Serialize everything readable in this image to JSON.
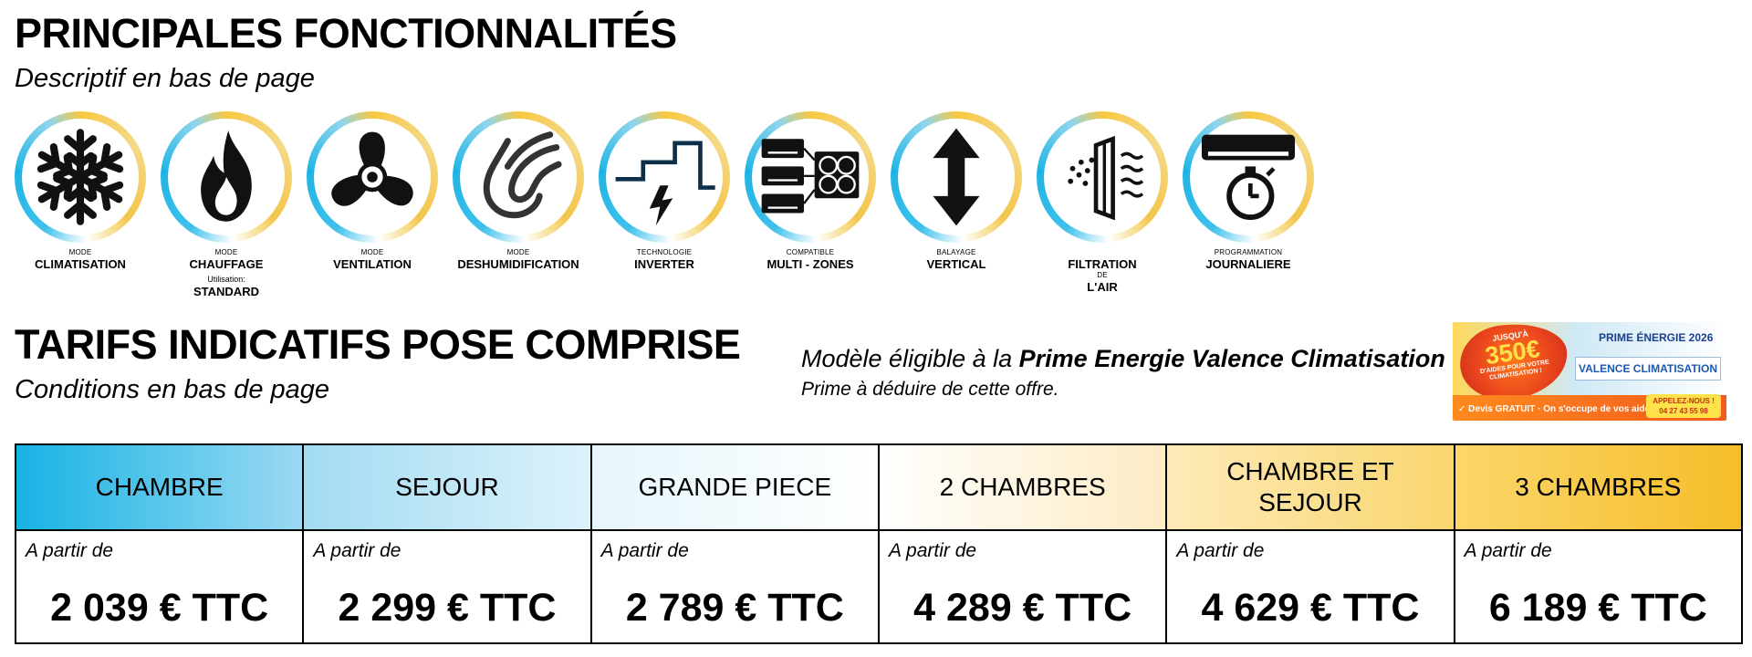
{
  "features": {
    "title": "PRINCIPALES FONCTIONNALITÉS",
    "subtitle": "Descriptif en bas de page",
    "items": [
      {
        "small": "MODE",
        "big": "CLIMATISATION",
        "icon": "snowflake-icon"
      },
      {
        "small": "MODE",
        "big": "CHAUFFAGE",
        "extra_small": "Utilisation:",
        "extra_big": "STANDARD",
        "icon": "flame-icon"
      },
      {
        "small": "MODE",
        "big": "VENTILATION",
        "icon": "fan-icon"
      },
      {
        "small": "MODE",
        "big": "DESHUMIDIFICATION",
        "icon": "droplet-wind-icon"
      },
      {
        "small": "TECHNOLOGIE",
        "big": "INVERTER",
        "icon": "inverter-lightning-icon"
      },
      {
        "small": "COMPATIBLE",
        "big": "MULTI - ZONES",
        "icon": "multi-zone-units-icon"
      },
      {
        "small": "BALAYAGE",
        "big": "VERTICAL",
        "icon": "vertical-arrow-icon"
      },
      {
        "big": "FILTRATION",
        "small_after": "DE",
        "big_after": "L'AIR",
        "icon": "air-filter-icon"
      },
      {
        "small": "PROGRAMMATION",
        "big": "JOURNALIERE",
        "icon": "timer-ac-icon"
      }
    ]
  },
  "tarifs": {
    "title": "TARIFS INDICATIFS POSE COMPRISE",
    "subtitle": "Conditions en bas de page"
  },
  "prime": {
    "line1_prefix": "Modèle éligible à la ",
    "line1_bold": "Prime Energie Valence Climatisation",
    "line2": "Prime à déduire de cette offre."
  },
  "banner": {
    "burst_top": "JUSQU'À",
    "burst_amount": "350€",
    "burst_line1": "D'AIDES POUR VOTRE",
    "burst_line2": "CLIMATISATION !",
    "title": "PRIME ÉNERGIE 2026",
    "name": "VALENCE CLIMATISATION",
    "devis": "✓ Devis GRATUIT · On s'occupe de vos aides !",
    "call_label": "APPELEZ-NOUS !",
    "phone": "04 27 43 55 98"
  },
  "prices": {
    "from_label": "A partir de",
    "columns": [
      {
        "header": "CHAMBRE",
        "price": "2 039 € TTC"
      },
      {
        "header": "SEJOUR",
        "price": "2 299 € TTC"
      },
      {
        "header": "GRANDE PIECE",
        "price": "2 789 € TTC"
      },
      {
        "header": "2 CHAMBRES",
        "price": "4 289 € TTC"
      },
      {
        "header": "CHAMBRE ET SEJOUR",
        "price": "4 629 € TTC"
      },
      {
        "header": "3 CHAMBRES",
        "price": "6 189 € TTC"
      }
    ]
  }
}
